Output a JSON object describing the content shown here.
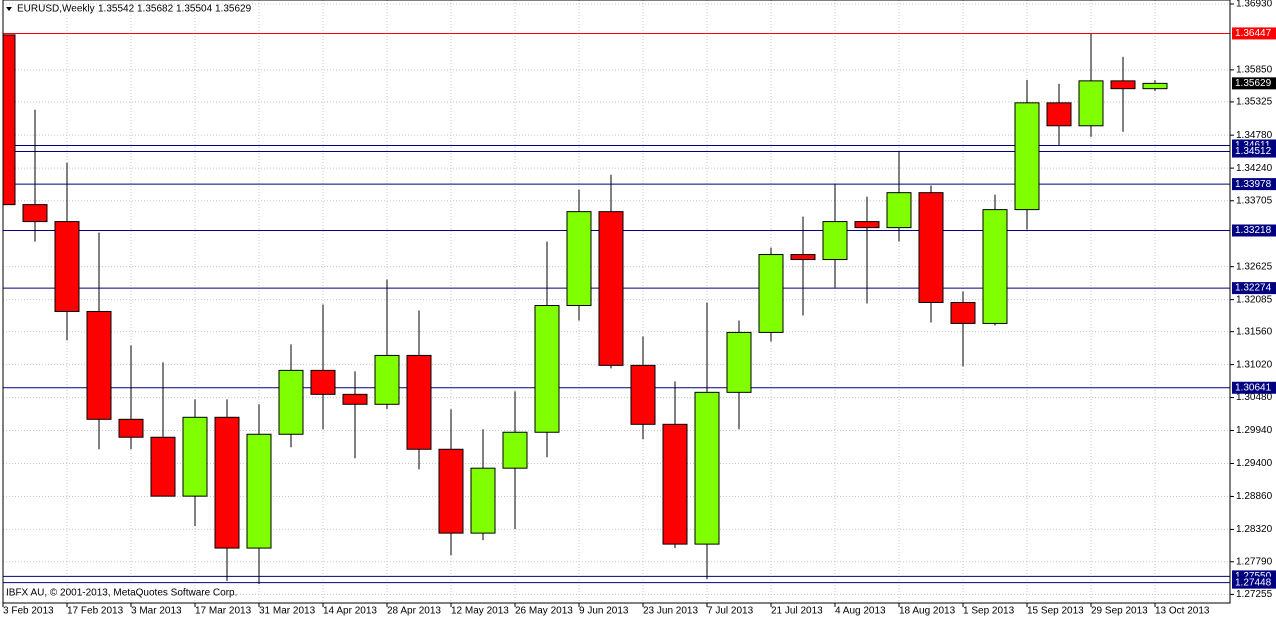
{
  "chart_data": {
    "type": "candlestick",
    "title": "EURUSD,Weekly",
    "header_values": [
      1.35542,
      1.35682,
      1.35504,
      1.35629
    ],
    "watermark": "IBFX AU, © 2001-2013, MetaQuotes Software Corp.",
    "categories": [
      "3 Feb 2013",
      null,
      "17 Feb 2013",
      null,
      "3 Mar 2013",
      null,
      "17 Mar 2013",
      null,
      "31 Mar 2013",
      null,
      "14 Apr 2013",
      null,
      "28 Apr 2013",
      null,
      "12 May 2013",
      null,
      "26 May 2013",
      null,
      "9 Jun 2013",
      null,
      "23 Jun 2013",
      null,
      "7 Jul 2013",
      null,
      "21 Jul 2013",
      null,
      "4 Aug 2013",
      null,
      "18 Aug 2013",
      null,
      "1 Sep 2013",
      null,
      "15 Sep 2013",
      null,
      "29 Sep 2013",
      null,
      "13 Oct 2013"
    ],
    "open": [
      1.36423,
      1.33642,
      1.33364,
      1.31891,
      1.30124,
      1.2983,
      1.28865,
      1.30157,
      1.28014,
      1.29879,
      1.30926,
      1.30533,
      1.3037,
      1.31171,
      1.29633,
      1.28259,
      1.29323,
      1.29912,
      1.31989,
      1.33527,
      1.31008,
      1.30042,
      1.28079,
      1.30566,
      1.31548,
      1.32824,
      1.32742,
      1.33364,
      1.33265,
      1.33838,
      1.32038,
      1.31695,
      1.3356,
      1.3531,
      1.34934,
      1.3567,
      1.35542
    ],
    "high": [
      1.36447,
      1.35196,
      1.34329,
      1.33184,
      1.31335,
      1.31057,
      1.30451,
      1.30451,
      1.3037,
      1.31351,
      1.32006,
      1.3091,
      1.32415,
      1.31908,
      1.30288,
      1.29961,
      1.30582,
      1.33036,
      1.33887,
      1.34132,
      1.31482,
      1.30746,
      1.32038,
      1.31744,
      1.32938,
      1.33445,
      1.33985,
      1.33773,
      1.34509,
      1.33953,
      1.32218,
      1.33805,
      1.35687,
      1.35621,
      1.36447,
      1.36063,
      1.35682
    ],
    "low": [
      1.33527,
      1.33036,
      1.31417,
      1.29633,
      1.29633,
      1.28865,
      1.28374,
      1.27474,
      1.27425,
      1.29666,
      1.29961,
      1.29486,
      1.30288,
      1.29306,
      1.27899,
      1.28145,
      1.28325,
      1.29503,
      1.31744,
      1.30959,
      1.29797,
      1.28014,
      1.27507,
      1.29961,
      1.314,
      1.31826,
      1.32284,
      1.32022,
      1.33036,
      1.31711,
      1.30991,
      1.31662,
      1.33233,
      1.34607,
      1.34754,
      1.34836,
      1.35504
    ],
    "close": [
      1.33642,
      1.33364,
      1.31891,
      1.30124,
      1.2983,
      1.28865,
      1.30157,
      1.28014,
      1.29879,
      1.30926,
      1.30533,
      1.3037,
      1.31171,
      1.29633,
      1.28259,
      1.29323,
      1.29912,
      1.31989,
      1.33527,
      1.31008,
      1.30042,
      1.28079,
      1.30566,
      1.31548,
      1.32824,
      1.32742,
      1.33364,
      1.33265,
      1.33838,
      1.32038,
      1.31695,
      1.3356,
      1.3531,
      1.34934,
      1.3567,
      1.35542,
      1.35629
    ],
    "up_color": "#80ff00",
    "down_color": "#ff0000",
    "outline_color": "#000000",
    "ylim": [
      1.27114,
      1.36995
    ],
    "yticks": [
      {
        "value": 1.3693,
        "label": "1.36930"
      },
      {
        "value": 1.3585,
        "label": "1.35850"
      },
      1.35325,
      {
        "value": 1.3478,
        "label": "1.34780"
      },
      {
        "value": 1.3424,
        "label": "1.34240"
      },
      1.33705,
      1.32625,
      1.32085,
      {
        "value": 1.3156,
        "label": "1.31560"
      },
      {
        "value": 1.3102,
        "label": "1.31020"
      },
      {
        "value": 1.3048,
        "label": "1.30480"
      },
      {
        "value": 1.2994,
        "label": "1.29940"
      },
      {
        "value": 1.294,
        "label": "1.29400"
      },
      {
        "value": 1.2886,
        "label": "1.28860"
      },
      {
        "value": 1.2832,
        "label": "1.28320"
      },
      {
        "value": 1.2779,
        "label": "1.27790"
      },
      1.27255
    ],
    "grid": true,
    "levels": [
      {
        "value": 1.36447,
        "color": "#ff0000"
      },
      {
        "value": 1.34611,
        "color": "#000080"
      },
      {
        "value": 1.34512,
        "color": "#000080"
      },
      {
        "value": 1.33978,
        "color": "#000080"
      },
      {
        "value": 1.33218,
        "color": "#000080"
      },
      {
        "value": 1.32274,
        "color": "#000080"
      },
      {
        "value": 1.30641,
        "color": "#000080"
      },
      {
        "value": {
          "value": 1.2755,
          "label": "1.27550"
        },
        "color": "#000080"
      },
      {
        "value": 1.27448,
        "color": "#000080"
      }
    ],
    "bid": 1.35629
  }
}
